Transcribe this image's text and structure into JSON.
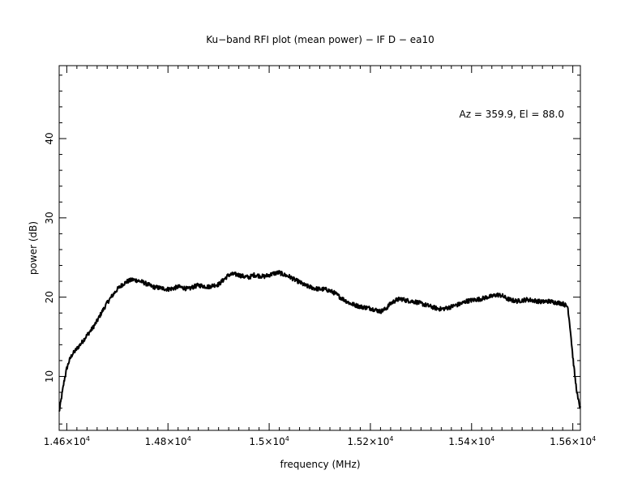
{
  "chart_data": {
    "type": "line",
    "title": "Ku−band RFI plot (mean power) − IF D − ea10",
    "xlabel": "frequency (MHz)",
    "ylabel": "power (dB)",
    "annotation": "Az = 359.9, El = 88.0",
    "xlim": [
      14585,
      15615
    ],
    "ylim": [
      3.2,
      49.2
    ],
    "grid": false,
    "line_color": "#000000",
    "x_ticks": [
      {
        "value": 14600,
        "label": "1.46×10",
        "exp": "4"
      },
      {
        "value": 14800,
        "label": "1.48×10",
        "exp": "4"
      },
      {
        "value": 15000,
        "label": "1.5×10",
        "exp": "4"
      },
      {
        "value": 15200,
        "label": "1.52×10",
        "exp": "4"
      },
      {
        "value": 15400,
        "label": "1.54×10",
        "exp": "4"
      },
      {
        "value": 15600,
        "label": "1.56×10",
        "exp": "4"
      }
    ],
    "x_minor_step": 20,
    "y_ticks": [
      {
        "value": 10,
        "label": "10"
      },
      {
        "value": 20,
        "label": "20"
      },
      {
        "value": 30,
        "label": "30"
      },
      {
        "value": 40,
        "label": "40"
      }
    ],
    "y_minor_step": 2,
    "series": [
      {
        "x": [
          14585,
          14590,
          14595,
          14600,
          14605,
          14610,
          14620,
          14630,
          14640,
          14650,
          14660,
          14670,
          14680,
          14690,
          14700,
          14710,
          14720,
          14730,
          14740,
          14750,
          14760,
          14770,
          14780,
          14790,
          14800,
          14810,
          14820,
          14830,
          14840,
          14850,
          14860,
          14870,
          14880,
          14890,
          14900,
          14910,
          14920,
          14930,
          14940,
          14950,
          14960,
          14970,
          14980,
          14990,
          15000,
          15010,
          15020,
          15030,
          15040,
          15050,
          15060,
          15070,
          15080,
          15090,
          15100,
          15110,
          15120,
          15130,
          15140,
          15150,
          15160,
          15170,
          15180,
          15190,
          15200,
          15210,
          15220,
          15230,
          15240,
          15250,
          15260,
          15270,
          15280,
          15290,
          15300,
          15310,
          15320,
          15330,
          15340,
          15350,
          15360,
          15370,
          15380,
          15390,
          15400,
          15410,
          15420,
          15430,
          15440,
          15450,
          15460,
          15470,
          15480,
          15490,
          15500,
          15510,
          15520,
          15530,
          15540,
          15550,
          15560,
          15570,
          15580,
          15590,
          15595,
          15600,
          15605,
          15610,
          15615
        ],
        "y": [
          5.5,
          7.5,
          9.5,
          11.0,
          12.0,
          12.7,
          13.5,
          14.3,
          15.2,
          16.0,
          17.0,
          18.2,
          19.3,
          20.2,
          21.0,
          21.6,
          22.0,
          22.2,
          22.1,
          21.9,
          21.6,
          21.3,
          21.2,
          21.1,
          21.0,
          21.1,
          21.3,
          21.2,
          21.0,
          21.3,
          21.5,
          21.4,
          21.3,
          21.5,
          21.6,
          22.2,
          22.8,
          22.9,
          22.8,
          22.6,
          22.5,
          22.8,
          22.7,
          22.6,
          22.8,
          23.0,
          23.1,
          22.8,
          22.6,
          22.2,
          21.9,
          21.5,
          21.3,
          21.1,
          21.0,
          21.0,
          20.8,
          20.5,
          20.0,
          19.6,
          19.2,
          19.0,
          18.8,
          18.7,
          18.6,
          18.4,
          18.2,
          18.5,
          19.2,
          19.6,
          19.8,
          19.6,
          19.5,
          19.4,
          19.2,
          19.0,
          18.8,
          18.6,
          18.5,
          18.6,
          18.8,
          19.0,
          19.2,
          19.5,
          19.6,
          19.7,
          19.8,
          20.0,
          20.1,
          20.3,
          20.2,
          19.8,
          19.6,
          19.5,
          19.6,
          19.7,
          19.6,
          19.5,
          19.4,
          19.5,
          19.4,
          19.3,
          19.2,
          18.8,
          16.0,
          12.5,
          9.5,
          7.2,
          6.0
        ]
      }
    ]
  }
}
